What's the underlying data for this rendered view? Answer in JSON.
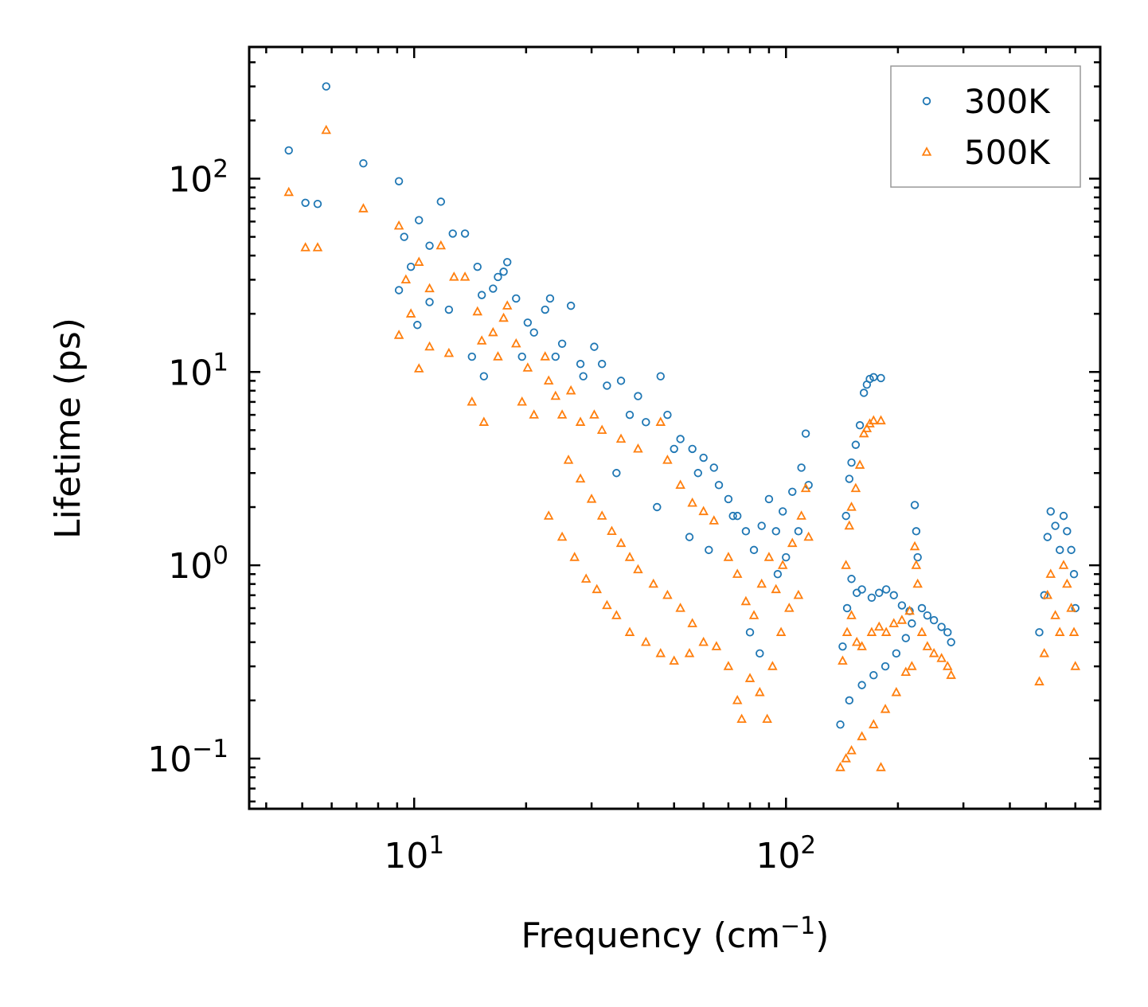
{
  "chart_data": {
    "type": "scatter",
    "title": "",
    "xlabel": "Frequency (cm",
    "xlabel_sup": "−1",
    "xlabel_tail": ")",
    "ylabel": "Lifetime (ps)",
    "xscale": "log",
    "yscale": "log",
    "xlim": [
      3.6,
      700
    ],
    "ylim": [
      0.055,
      480
    ],
    "x_tick_labels": [
      {
        "base": "10",
        "exp": "1",
        "value": 10
      },
      {
        "base": "10",
        "exp": "2",
        "value": 100
      }
    ],
    "y_tick_labels": [
      {
        "base": "10",
        "exp": "−1",
        "value": 0.1
      },
      {
        "base": "10",
        "exp": "0",
        "value": 1
      },
      {
        "base": "10",
        "exp": "1",
        "value": 10
      },
      {
        "base": "10",
        "exp": "2",
        "value": 100
      }
    ],
    "legend_position": "top-right",
    "series": [
      {
        "name": "300K",
        "marker": "circle",
        "color": "#1f77b4",
        "points": [
          [
            4.6,
            140
          ],
          [
            5.1,
            75
          ],
          [
            5.5,
            74
          ],
          [
            5.8,
            300
          ],
          [
            7.3,
            120
          ],
          [
            9.1,
            97
          ],
          [
            9.1,
            26.5
          ],
          [
            9.4,
            50
          ],
          [
            9.8,
            35
          ],
          [
            10.3,
            61
          ],
          [
            10.2,
            17.5
          ],
          [
            11.0,
            45
          ],
          [
            11.0,
            23
          ],
          [
            11.8,
            76
          ],
          [
            12.4,
            21
          ],
          [
            12.7,
            52
          ],
          [
            13.7,
            52
          ],
          [
            14.3,
            12
          ],
          [
            14.8,
            35
          ],
          [
            15.2,
            25
          ],
          [
            15.4,
            9.5
          ],
          [
            16.3,
            27
          ],
          [
            16.8,
            31
          ],
          [
            17.4,
            33
          ],
          [
            17.8,
            37
          ],
          [
            18.8,
            24
          ],
          [
            19.5,
            12
          ],
          [
            20.2,
            18
          ],
          [
            21.0,
            16
          ],
          [
            22.5,
            21
          ],
          [
            23.2,
            24
          ],
          [
            24.0,
            12
          ],
          [
            25.0,
            14
          ],
          [
            26.4,
            22
          ],
          [
            28.0,
            11
          ],
          [
            30.5,
            13.5
          ],
          [
            32.0,
            11
          ],
          [
            36.0,
            9
          ],
          [
            40.0,
            7.5
          ],
          [
            46.0,
            9.5
          ],
          [
            48.0,
            6
          ],
          [
            52.0,
            4.5
          ],
          [
            56.0,
            4
          ],
          [
            60.0,
            3.6
          ],
          [
            64.0,
            3.2
          ],
          [
            70.0,
            2.2
          ],
          [
            74.0,
            1.8
          ],
          [
            78.0,
            1.5
          ],
          [
            82.0,
            1.2
          ],
          [
            86.0,
            1.6
          ],
          [
            90.0,
            2.2
          ],
          [
            94.0,
            1.5
          ],
          [
            98.0,
            1.9
          ],
          [
            104.0,
            2.4
          ],
          [
            110.0,
            3.2
          ],
          [
            113.0,
            4.8
          ],
          [
            115.0,
            2.6
          ],
          [
            28.5,
            9.5
          ],
          [
            33.0,
            8.5
          ],
          [
            38.0,
            6
          ],
          [
            42.0,
            5.5
          ],
          [
            50.0,
            4
          ],
          [
            58.0,
            3
          ],
          [
            66.0,
            2.6
          ],
          [
            72.0,
            1.8
          ],
          [
            35.0,
            3
          ],
          [
            45.0,
            2
          ],
          [
            55.0,
            1.4
          ],
          [
            62.0,
            1.2
          ],
          [
            80.0,
            0.45
          ],
          [
            85.0,
            0.35
          ],
          [
            95.0,
            0.9
          ],
          [
            100.0,
            1.1
          ],
          [
            108.0,
            1.5
          ],
          [
            145.0,
            1.8
          ],
          [
            148.0,
            2.8
          ],
          [
            150.0,
            3.4
          ],
          [
            154.0,
            4.2
          ],
          [
            158.0,
            5.3
          ],
          [
            162.0,
            7.8
          ],
          [
            165.0,
            8.6
          ],
          [
            168.0,
            9.2
          ],
          [
            172.0,
            9.4
          ],
          [
            180.0,
            9.3
          ],
          [
            142.0,
            0.38
          ],
          [
            146.0,
            0.6
          ],
          [
            150.0,
            0.85
          ],
          [
            155.0,
            0.72
          ],
          [
            160.0,
            0.75
          ],
          [
            170.0,
            0.68
          ],
          [
            178.0,
            0.72
          ],
          [
            186.0,
            0.75
          ],
          [
            195.0,
            0.7
          ],
          [
            205.0,
            0.62
          ],
          [
            215.0,
            0.58
          ],
          [
            222.0,
            2.05
          ],
          [
            224.0,
            1.5
          ],
          [
            226.0,
            1.1
          ],
          [
            232.0,
            0.6
          ],
          [
            240.0,
            0.55
          ],
          [
            250.0,
            0.52
          ],
          [
            262.0,
            0.48
          ],
          [
            272.0,
            0.45
          ],
          [
            278.0,
            0.4
          ],
          [
            140.0,
            0.15
          ],
          [
            148.0,
            0.2
          ],
          [
            160.0,
            0.24
          ],
          [
            172.0,
            0.27
          ],
          [
            185.0,
            0.3
          ],
          [
            198.0,
            0.35
          ],
          [
            210.0,
            0.42
          ],
          [
            218.0,
            0.5
          ],
          [
            480.0,
            0.45
          ],
          [
            495.0,
            0.7
          ],
          [
            505.0,
            1.4
          ],
          [
            515.0,
            1.9
          ],
          [
            530.0,
            1.6
          ],
          [
            545.0,
            1.2
          ],
          [
            558.0,
            1.8
          ],
          [
            570.0,
            1.5
          ],
          [
            585.0,
            1.2
          ],
          [
            595.0,
            0.9
          ],
          [
            600.0,
            0.6
          ]
        ]
      },
      {
        "name": "500K",
        "marker": "triangle",
        "color": "#ff7f0e",
        "points": [
          [
            4.6,
            85
          ],
          [
            5.1,
            44
          ],
          [
            5.5,
            44
          ],
          [
            5.8,
            178
          ],
          [
            7.3,
            70
          ],
          [
            9.1,
            57
          ],
          [
            9.1,
            15.5
          ],
          [
            9.5,
            30
          ],
          [
            9.8,
            20
          ],
          [
            10.3,
            37
          ],
          [
            10.3,
            10.4
          ],
          [
            11.0,
            27
          ],
          [
            11.0,
            13.5
          ],
          [
            11.8,
            45
          ],
          [
            12.4,
            12.5
          ],
          [
            12.8,
            31
          ],
          [
            13.7,
            31
          ],
          [
            14.3,
            7
          ],
          [
            14.8,
            20.5
          ],
          [
            15.2,
            14.5
          ],
          [
            15.4,
            5.5
          ],
          [
            16.3,
            16
          ],
          [
            16.8,
            12
          ],
          [
            17.4,
            19
          ],
          [
            17.8,
            22
          ],
          [
            18.8,
            14
          ],
          [
            19.5,
            7
          ],
          [
            20.2,
            10.5
          ],
          [
            21.0,
            6
          ],
          [
            22.5,
            12
          ],
          [
            23.0,
            9
          ],
          [
            24.0,
            7.5
          ],
          [
            25.0,
            6
          ],
          [
            26.4,
            8
          ],
          [
            28.0,
            5.5
          ],
          [
            30.5,
            6
          ],
          [
            32.0,
            5
          ],
          [
            36.0,
            4.5
          ],
          [
            40.0,
            4
          ],
          [
            46.0,
            5.5
          ],
          [
            48.0,
            3.5
          ],
          [
            52.0,
            2.6
          ],
          [
            56.0,
            2.1
          ],
          [
            60.0,
            1.9
          ],
          [
            64.0,
            1.7
          ],
          [
            70.0,
            1.1
          ],
          [
            74.0,
            0.9
          ],
          [
            78.0,
            0.65
          ],
          [
            82.0,
            0.55
          ],
          [
            86.0,
            0.8
          ],
          [
            90.0,
            1.1
          ],
          [
            94.0,
            0.75
          ],
          [
            98.0,
            1.0
          ],
          [
            104.0,
            1.3
          ],
          [
            110.0,
            1.8
          ],
          [
            113.0,
            2.5
          ],
          [
            115.0,
            1.4
          ],
          [
            26.0,
            3.5
          ],
          [
            28.0,
            2.8
          ],
          [
            30.0,
            2.2
          ],
          [
            32.0,
            1.8
          ],
          [
            34.0,
            1.5
          ],
          [
            36.0,
            1.3
          ],
          [
            38.0,
            1.1
          ],
          [
            40.0,
            0.95
          ],
          [
            44.0,
            0.8
          ],
          [
            48.0,
            0.7
          ],
          [
            52.0,
            0.6
          ],
          [
            56.0,
            0.5
          ],
          [
            23.0,
            1.8
          ],
          [
            25.0,
            1.4
          ],
          [
            27.0,
            1.1
          ],
          [
            29.0,
            0.85
          ],
          [
            31.0,
            0.75
          ],
          [
            33.0,
            0.62
          ],
          [
            35.0,
            0.55
          ],
          [
            38.0,
            0.45
          ],
          [
            42.0,
            0.4
          ],
          [
            46.0,
            0.35
          ],
          [
            50.0,
            0.32
          ],
          [
            55.0,
            0.35
          ],
          [
            60.0,
            0.4
          ],
          [
            65.0,
            0.38
          ],
          [
            70.0,
            0.3
          ],
          [
            74.0,
            0.2
          ],
          [
            76.0,
            0.16
          ],
          [
            80.0,
            0.26
          ],
          [
            85.0,
            0.22
          ],
          [
            89.0,
            0.16
          ],
          [
            92.0,
            0.3
          ],
          [
            97.0,
            0.45
          ],
          [
            102.0,
            0.6
          ],
          [
            108.0,
            0.7
          ],
          [
            145.0,
            1.0
          ],
          [
            148.0,
            1.6
          ],
          [
            150.0,
            2.0
          ],
          [
            154.0,
            2.5
          ],
          [
            158.0,
            3.3
          ],
          [
            162.0,
            4.8
          ],
          [
            165.0,
            5.1
          ],
          [
            168.0,
            5.4
          ],
          [
            172.0,
            5.6
          ],
          [
            180.0,
            5.6
          ],
          [
            142.0,
            0.32
          ],
          [
            146.0,
            0.45
          ],
          [
            150.0,
            0.55
          ],
          [
            155.0,
            0.4
          ],
          [
            160.0,
            0.38
          ],
          [
            170.0,
            0.45
          ],
          [
            178.0,
            0.48
          ],
          [
            186.0,
            0.45
          ],
          [
            195.0,
            0.5
          ],
          [
            205.0,
            0.52
          ],
          [
            215.0,
            0.58
          ],
          [
            222.0,
            1.25
          ],
          [
            224.0,
            1.0
          ],
          [
            226.0,
            0.8
          ],
          [
            232.0,
            0.45
          ],
          [
            240.0,
            0.38
          ],
          [
            250.0,
            0.35
          ],
          [
            262.0,
            0.33
          ],
          [
            272.0,
            0.3
          ],
          [
            278.0,
            0.27
          ],
          [
            140.0,
            0.09
          ],
          [
            145.0,
            0.1
          ],
          [
            150.0,
            0.11
          ],
          [
            160.0,
            0.13
          ],
          [
            172.0,
            0.15
          ],
          [
            180.0,
            0.09
          ],
          [
            185.0,
            0.18
          ],
          [
            198.0,
            0.22
          ],
          [
            210.0,
            0.28
          ],
          [
            218.0,
            0.3
          ],
          [
            480.0,
            0.25
          ],
          [
            495.0,
            0.35
          ],
          [
            505.0,
            0.7
          ],
          [
            515.0,
            0.9
          ],
          [
            530.0,
            0.55
          ],
          [
            545.0,
            0.45
          ],
          [
            558.0,
            1.0
          ],
          [
            570.0,
            0.8
          ],
          [
            585.0,
            0.6
          ],
          [
            595.0,
            0.45
          ],
          [
            600.0,
            0.3
          ]
        ]
      }
    ]
  }
}
